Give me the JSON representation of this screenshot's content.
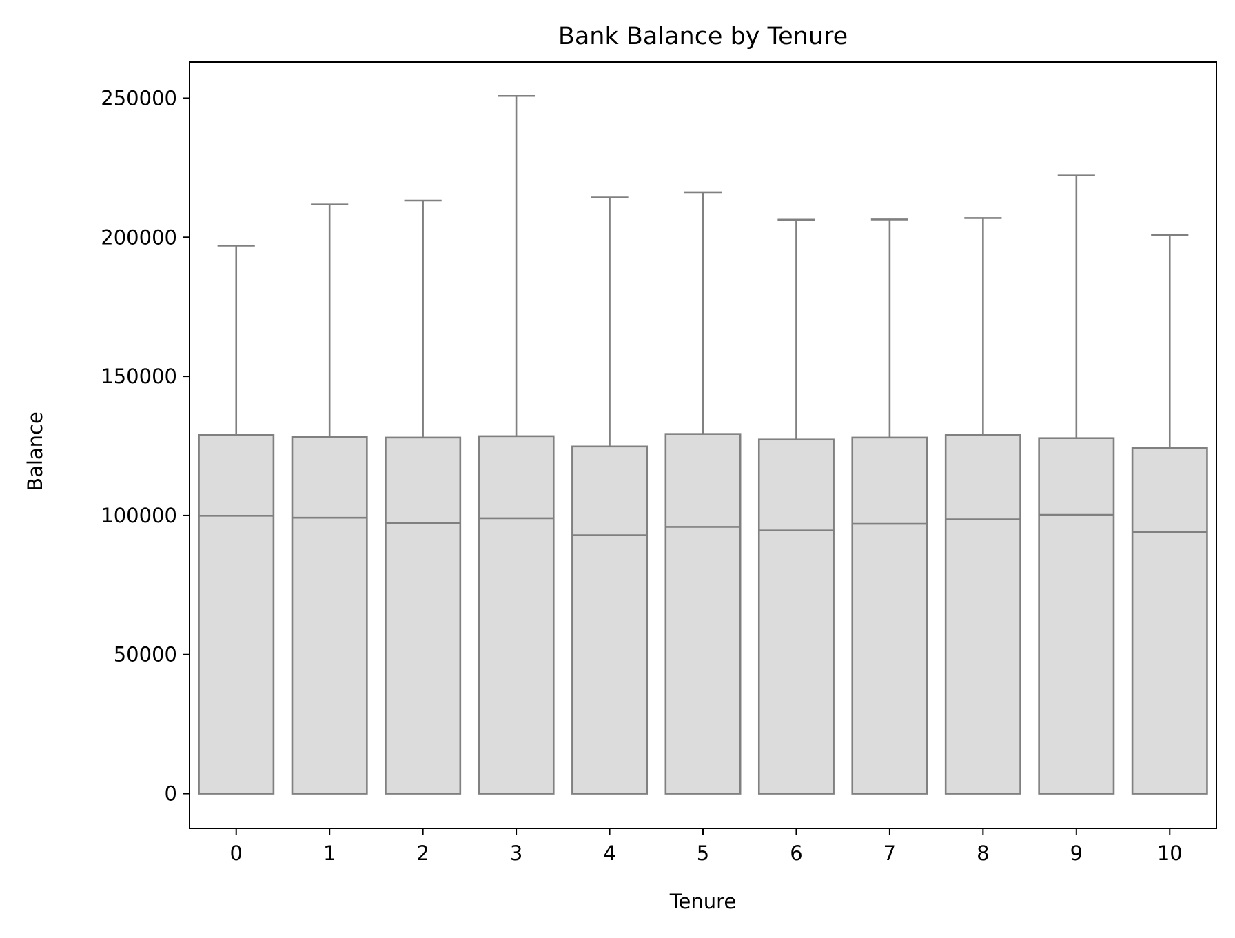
{
  "chart_data": {
    "type": "boxplot",
    "title": "Bank Balance by Tenure",
    "xlabel": "Tenure",
    "ylabel": "Balance",
    "categories": [
      "0",
      "1",
      "2",
      "3",
      "4",
      "5",
      "6",
      "7",
      "8",
      "9",
      "10"
    ],
    "ylim": [
      -12500,
      263000
    ],
    "yticks": [
      0,
      50000,
      100000,
      150000,
      200000,
      250000
    ],
    "ytick_labels": [
      "0",
      "50000",
      "100000",
      "150000",
      "200000",
      "250000"
    ],
    "boxes": [
      {
        "category": "0",
        "whisker_low": 0,
        "q1": 0,
        "median": 99900,
        "q3": 129000,
        "whisker_high": 197000
      },
      {
        "category": "1",
        "whisker_low": 0,
        "q1": 0,
        "median": 99200,
        "q3": 128300,
        "whisker_high": 211800
      },
      {
        "category": "2",
        "whisker_low": 0,
        "q1": 0,
        "median": 97300,
        "q3": 128000,
        "whisker_high": 213200
      },
      {
        "category": "3",
        "whisker_low": 0,
        "q1": 0,
        "median": 99000,
        "q3": 128500,
        "whisker_high": 250800
      },
      {
        "category": "4",
        "whisker_low": 0,
        "q1": 0,
        "median": 92900,
        "q3": 124800,
        "whisker_high": 214300
      },
      {
        "category": "5",
        "whisker_low": 0,
        "q1": 0,
        "median": 95900,
        "q3": 129300,
        "whisker_high": 216200
      },
      {
        "category": "6",
        "whisker_low": 0,
        "q1": 0,
        "median": 94600,
        "q3": 127300,
        "whisker_high": 206300
      },
      {
        "category": "7",
        "whisker_low": 0,
        "q1": 0,
        "median": 97000,
        "q3": 128000,
        "whisker_high": 206400
      },
      {
        "category": "8",
        "whisker_low": 0,
        "q1": 0,
        "median": 98600,
        "q3": 129000,
        "whisker_high": 206900
      },
      {
        "category": "9",
        "whisker_low": 0,
        "q1": 0,
        "median": 100200,
        "q3": 127800,
        "whisker_high": 222200
      },
      {
        "category": "10",
        "whisker_low": 0,
        "q1": 0,
        "median": 94000,
        "q3": 124300,
        "whisker_high": 200900
      }
    ],
    "grid": false,
    "legend": "none",
    "colors": {
      "box_fill": "#dcdcdc",
      "box_edge": "#808080",
      "axes": "#000000",
      "background": "#ffffff"
    }
  }
}
